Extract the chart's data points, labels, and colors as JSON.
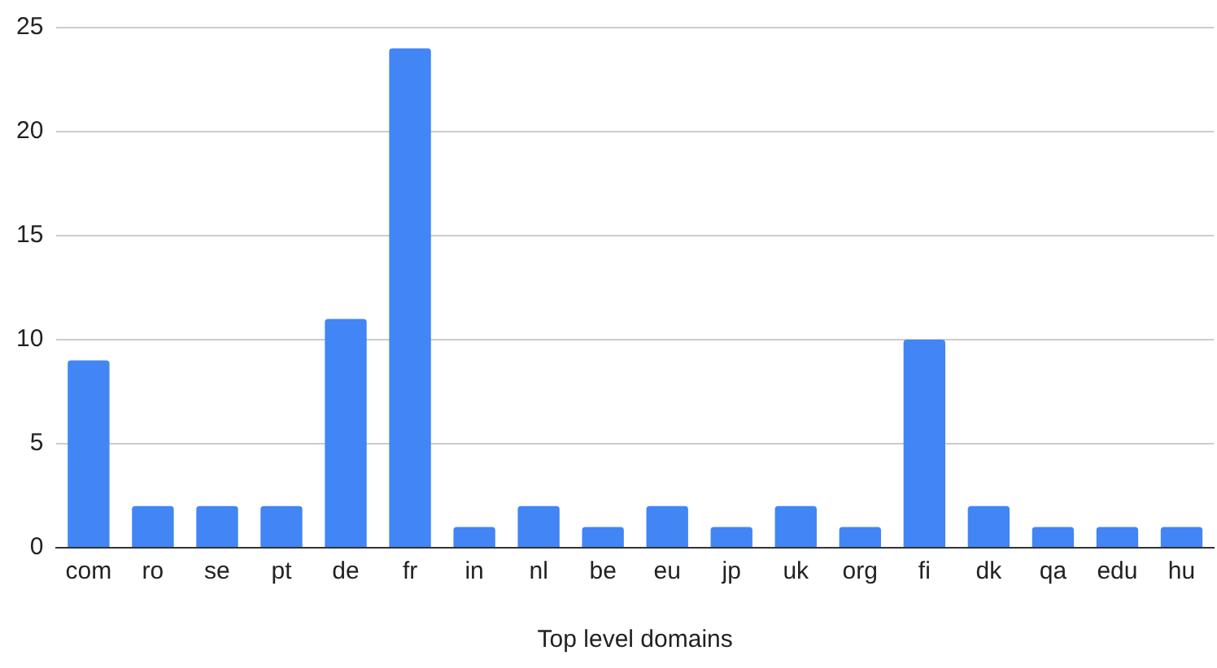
{
  "chart_data": {
    "type": "bar",
    "xlabel": "Top level domains",
    "categories": [
      "com",
      "ro",
      "se",
      "pt",
      "de",
      "fr",
      "in",
      "nl",
      "be",
      "eu",
      "jp",
      "uk",
      "org",
      "fi",
      "dk",
      "qa",
      "edu",
      "hu"
    ],
    "values": [
      9,
      2,
      2,
      2,
      11,
      24,
      1,
      2,
      1,
      2,
      1,
      2,
      1,
      10,
      2,
      1,
      1,
      1
    ],
    "color": "#4285f4",
    "ylim": [
      0,
      25
    ],
    "yticks": [
      0,
      5,
      10,
      15,
      20,
      25
    ],
    "grid": "y"
  }
}
